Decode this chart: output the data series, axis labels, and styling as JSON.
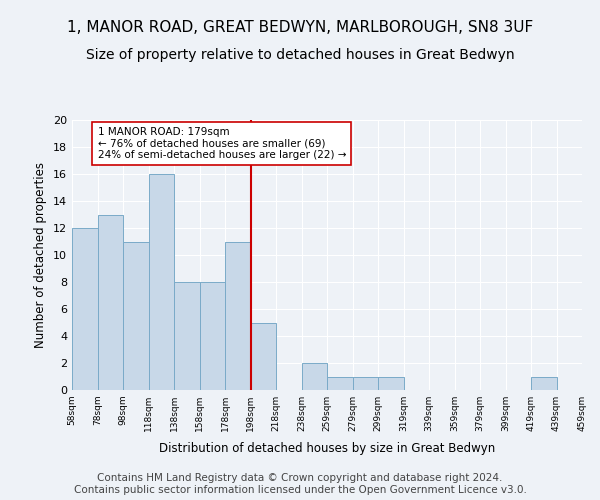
{
  "title1": "1, MANOR ROAD, GREAT BEDWYN, MARLBOROUGH, SN8 3UF",
  "title2": "Size of property relative to detached houses in Great Bedwyn",
  "xlabel": "Distribution of detached houses by size in Great Bedwyn",
  "ylabel": "Number of detached properties",
  "bar_values": [
    12,
    13,
    11,
    16,
    8,
    8,
    11,
    5,
    0,
    2,
    1,
    1,
    1,
    0,
    0,
    0,
    0,
    0,
    1,
    0
  ],
  "bin_labels": [
    "58sqm",
    "78sqm",
    "98sqm",
    "118sqm",
    "138sqm",
    "158sqm",
    "178sqm",
    "198sqm",
    "218sqm",
    "238sqm",
    "259sqm",
    "279sqm",
    "299sqm",
    "319sqm",
    "339sqm",
    "359sqm",
    "379sqm",
    "399sqm",
    "419sqm",
    "439sqm",
    "459sqm"
  ],
  "bar_color": "#c8d8e8",
  "bar_edge_color": "#7aaac8",
  "vline_color": "#cc0000",
  "annotation_text": "1 MANOR ROAD: 179sqm\n← 76% of detached houses are smaller (69)\n24% of semi-detached houses are larger (22) →",
  "annotation_box_color": "white",
  "annotation_box_edge": "#cc0000",
  "ylim": [
    0,
    20
  ],
  "yticks": [
    0,
    2,
    4,
    6,
    8,
    10,
    12,
    14,
    16,
    18,
    20
  ],
  "footer": "Contains HM Land Registry data © Crown copyright and database right 2024.\nContains public sector information licensed under the Open Government Licence v3.0.",
  "bg_color": "#eef2f7",
  "grid_color": "#ffffff",
  "title_fontsize": 11,
  "subtitle_fontsize": 10,
  "footer_fontsize": 7.5
}
